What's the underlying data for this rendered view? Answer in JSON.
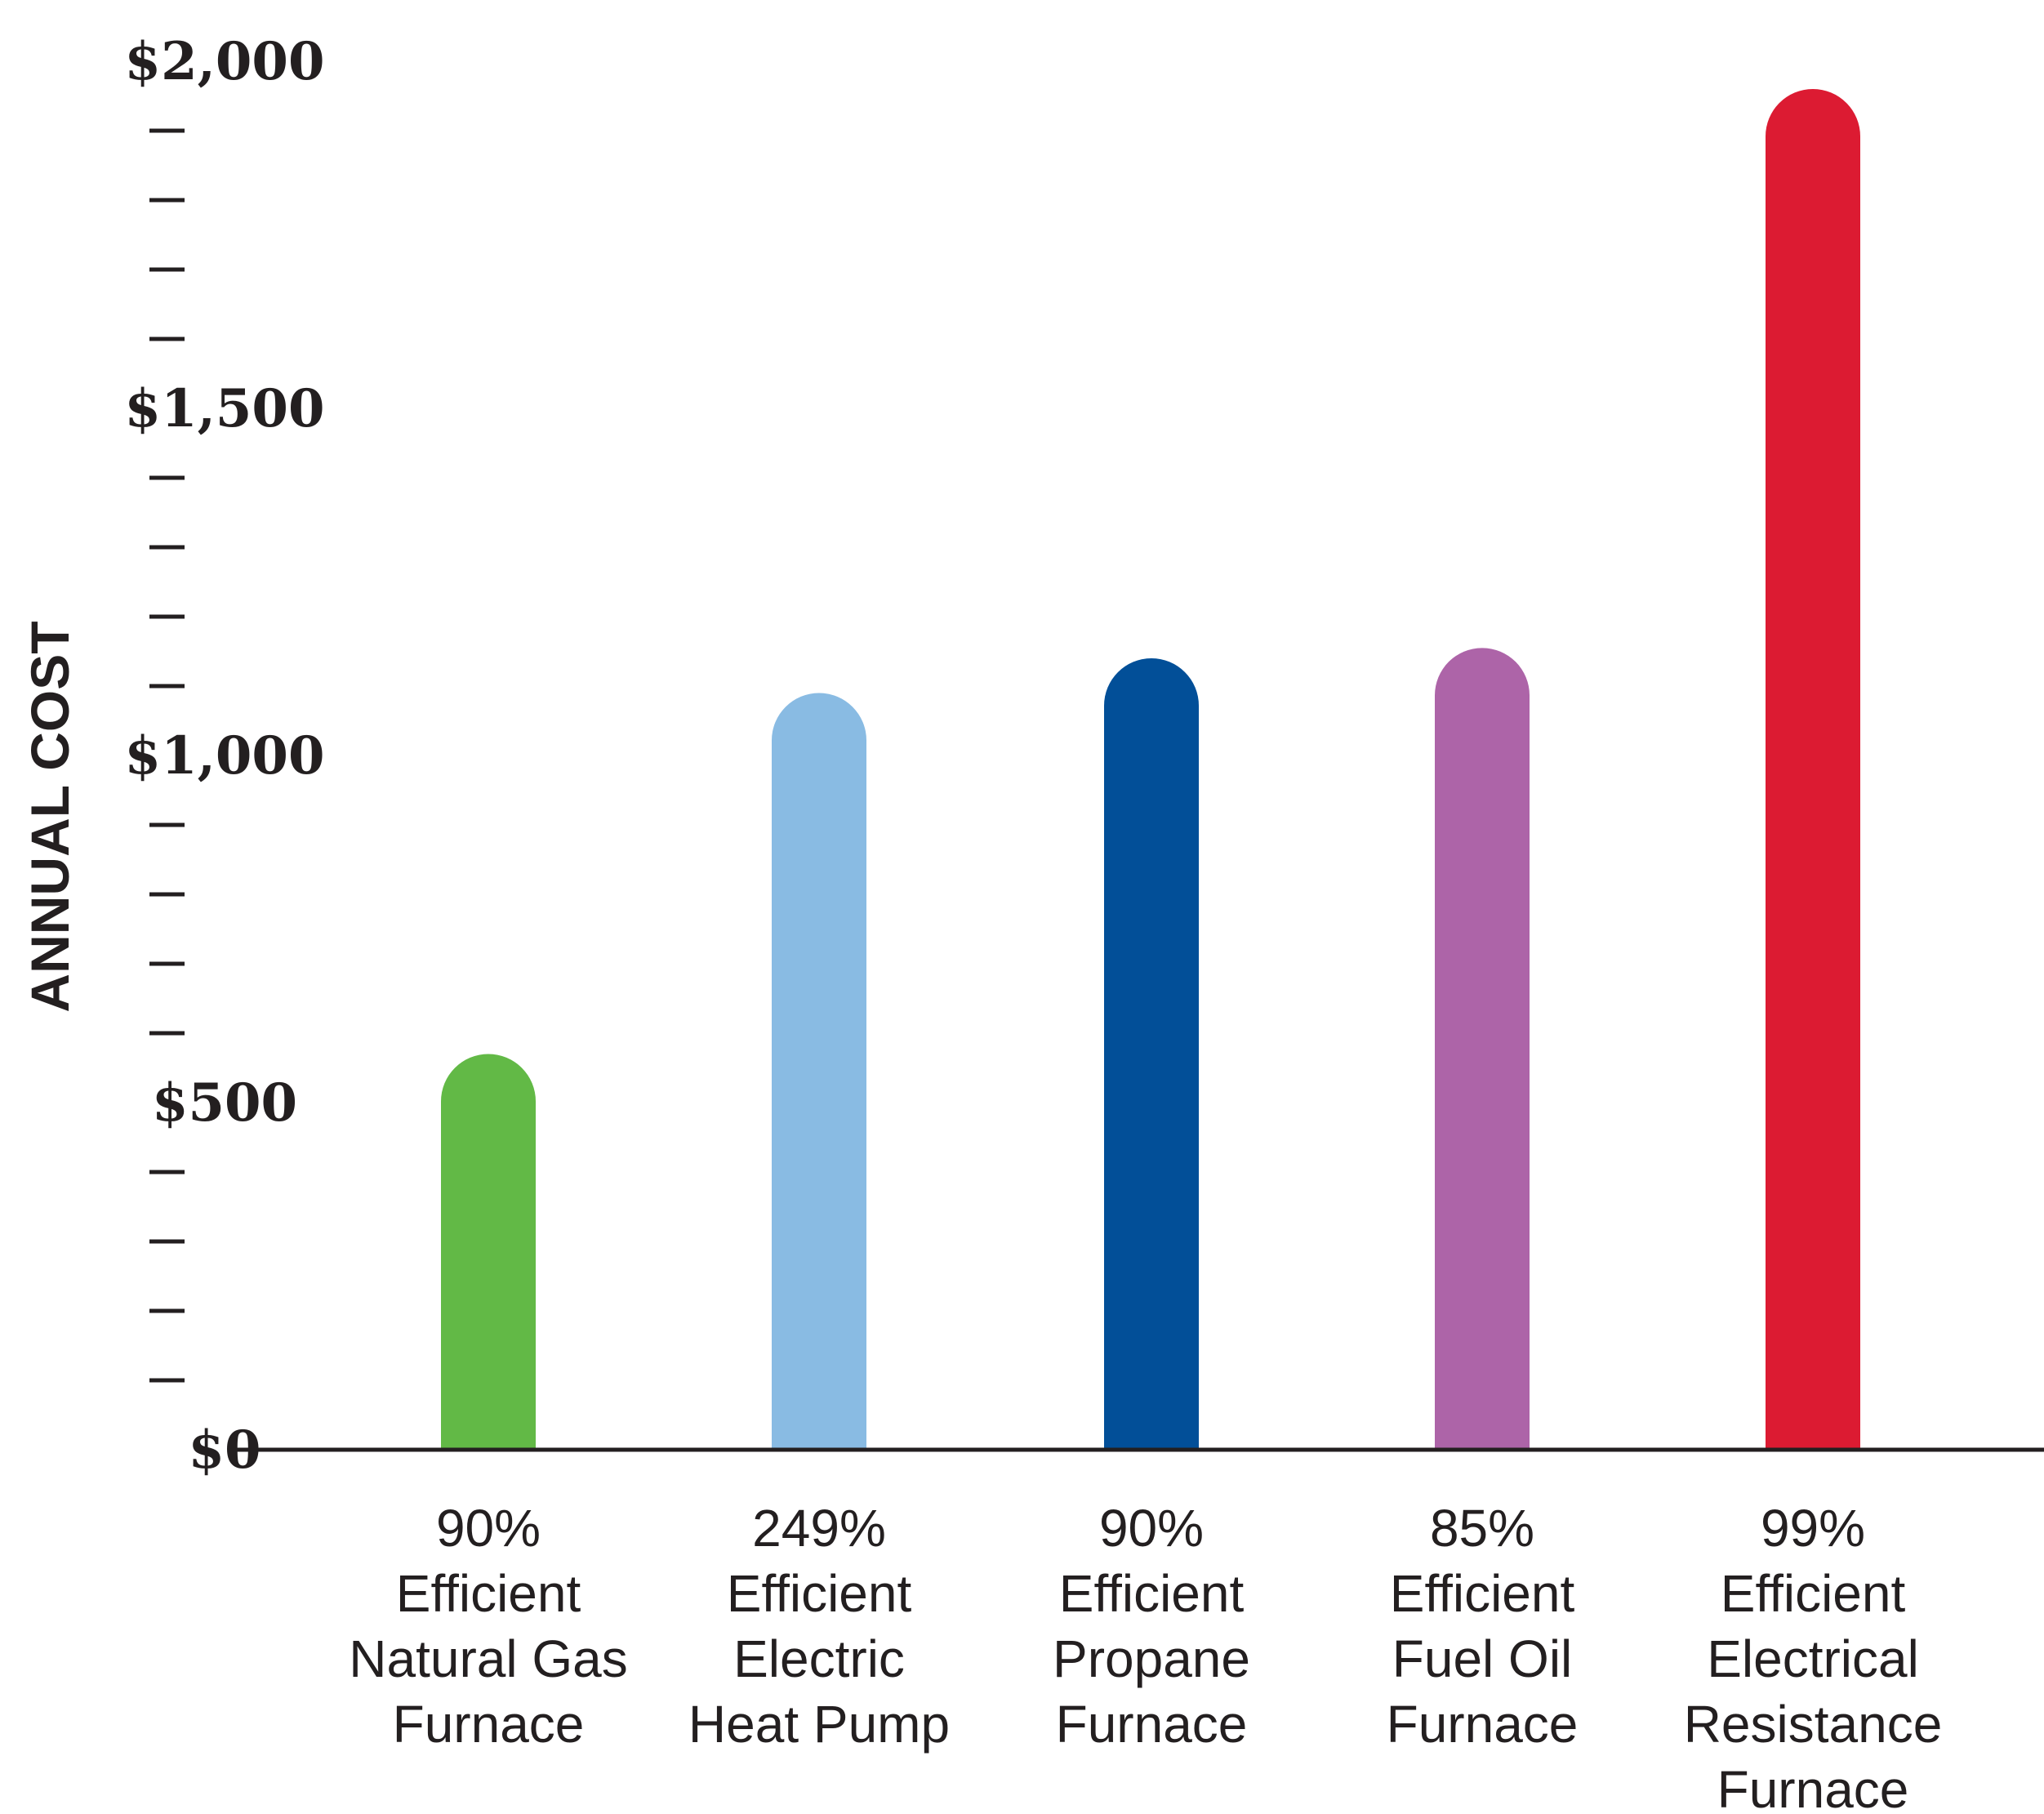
{
  "chart_data": {
    "type": "bar",
    "title": "",
    "xlabel": "",
    "ylabel": "ANNUAL COST",
    "ylim": [
      0,
      2000
    ],
    "grid": false,
    "legend": "none",
    "y_ticks": [
      {
        "value": 0,
        "label": "$0"
      },
      {
        "value": 500,
        "label": "$500"
      },
      {
        "value": 1000,
        "label": "$1,000"
      },
      {
        "value": 1500,
        "label": "$1,500"
      },
      {
        "value": 2000,
        "label": "$2,000"
      }
    ],
    "y_minor_step": 100,
    "categories": [
      "90% Efficient Natural Gas Furnace",
      "249% Efficient Electric Heat Pump",
      "90% Efficient Propane Furnace",
      "85% Efficient Fuel Oil Furnace",
      "99% Efficient Electrical Resistance Furnace"
    ],
    "category_lines": [
      [
        "90%",
        "Efficient",
        "Natural Gas",
        "Furnace"
      ],
      [
        "249%",
        "Efficient",
        "Electric",
        "Heat Pump"
      ],
      [
        "90%",
        "Efficient",
        "Propane",
        "Furnace"
      ],
      [
        "85%",
        "Efficient",
        "Fuel Oil",
        "Furnace"
      ],
      [
        "99%",
        "Efficient",
        "Electrical",
        "Resistance",
        "Furnace"
      ]
    ],
    "values": [
      570,
      1090,
      1140,
      1155,
      1960
    ],
    "colors": [
      "#62b946",
      "#89bbe3",
      "#024f98",
      "#ad64a8",
      "#dc1b32"
    ]
  }
}
